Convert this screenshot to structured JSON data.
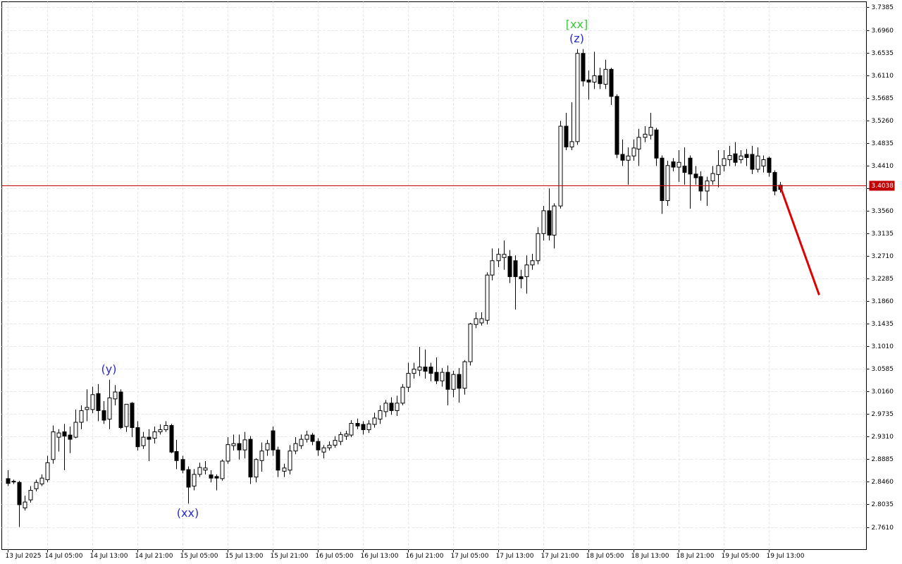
{
  "chart_data": {
    "type": "candlestick",
    "xlim": [
      -1,
      152.375
    ],
    "ylim": [
      2.7186,
      3.7491
    ],
    "grid": true,
    "up_color": "#ffffff",
    "down_color": "#000000",
    "outline_color": "#000000",
    "xticks": [
      {
        "value": 0,
        "label": "13 Jul 2025"
      },
      {
        "value": 7,
        "label": "14 Jul 05:00"
      },
      {
        "value": 15,
        "label": "14 Jul 13:00"
      },
      {
        "value": 23,
        "label": "14 Jul 21:00"
      },
      {
        "value": 31,
        "label": "15 Jul 05:00"
      },
      {
        "value": 39,
        "label": "15 Jul 13:00"
      },
      {
        "value": 47,
        "label": "15 Jul 21:00"
      },
      {
        "value": 55,
        "label": "16 Jul 05:00"
      },
      {
        "value": 63,
        "label": "16 Jul 13:00"
      },
      {
        "value": 71,
        "label": "16 Jul 21:00"
      },
      {
        "value": 79,
        "label": "17 Jul 05:00"
      },
      {
        "value": 87,
        "label": "17 Jul 13:00"
      },
      {
        "value": 95,
        "label": "17 Jul 21:00"
      },
      {
        "value": 103,
        "label": "18 Jul 05:00"
      },
      {
        "value": 111,
        "label": "18 Jul 13:00"
      },
      {
        "value": 119,
        "label": "18 Jul 21:00"
      },
      {
        "value": 127,
        "label": "19 Jul 05:00"
      },
      {
        "value": 135,
        "label": "19 Jul 13:00"
      }
    ],
    "yticks": [
      3.7385,
      {
        "value": 3.696,
        "label": "3.6960"
      },
      3.6535,
      {
        "value": 3.611,
        "label": "3.6110"
      },
      3.5685,
      {
        "value": 3.526,
        "label": "3.5260"
      },
      3.4835,
      {
        "value": 3.441,
        "label": "3.4410"
      },
      3.3985,
      {
        "value": 3.356,
        "label": "3.3560"
      },
      3.3135,
      {
        "value": 3.271,
        "label": "3.2710"
      },
      3.2285,
      {
        "value": 3.186,
        "label": "3.1860"
      },
      3.1435,
      {
        "value": 3.101,
        "label": "3.1010"
      },
      3.0585,
      {
        "value": 3.016,
        "label": "3.0160"
      },
      2.9735,
      {
        "value": 2.931,
        "label": "2.9310"
      },
      2.8885,
      {
        "value": 2.846,
        "label": "2.8460"
      },
      2.8035,
      {
        "value": 2.761,
        "label": "2.7610"
      }
    ],
    "open": [
      2.852,
      2.846,
      2.845,
      2.797,
      2.812,
      2.833,
      2.842,
      2.85,
      2.888,
      2.93,
      2.94,
      2.934,
      2.93,
      2.958,
      2.982,
      2.982,
      3.012,
      2.98,
      2.964,
      3.002,
      3.015,
      2.95,
      2.994,
      2.948,
      2.914,
      2.93,
      2.928,
      2.94,
      2.944,
      2.952,
      2.903,
      2.888,
      2.869,
      2.838,
      2.86,
      2.868,
      2.859,
      2.856,
      2.852,
      2.885,
      2.914,
      2.918,
      2.906,
      2.926,
      2.855,
      2.886,
      2.906,
      2.942,
      2.906,
      2.866,
      2.868,
      2.904,
      2.914,
      2.926,
      2.934,
      2.922,
      2.902,
      2.91,
      2.915,
      2.922,
      2.932,
      2.934,
      2.956,
      2.954,
      2.944,
      2.954,
      2.964,
      2.978,
      2.994,
      2.98,
      2.994,
      3.024,
      3.05,
      3.056,
      3.062,
      3.062,
      3.052,
      3.036,
      3.052,
      3.02,
      3.048,
      3.022,
      3.072,
      3.142,
      3.145,
      3.15,
      3.235,
      3.262,
      3.268,
      3.27,
      3.262,
      3.232,
      3.232,
      3.254,
      3.262,
      3.313,
      3.356,
      3.31,
      3.365,
      3.515,
      3.476,
      3.486,
      3.652,
      3.602,
      3.598,
      3.61,
      3.594,
      3.622,
      3.571,
      3.462,
      3.451,
      3.459,
      3.472,
      3.494,
      3.498,
      3.508,
      3.455,
      3.375,
      3.448,
      3.438,
      3.44,
      3.455,
      3.425,
      3.42,
      3.393,
      3.412,
      3.424,
      3.441,
      3.452,
      3.463,
      3.452,
      3.462,
      3.462,
      3.434,
      3.44,
      3.455,
      3.428,
      3.404
    ],
    "high": [
      2.868,
      2.85,
      2.848,
      2.82,
      2.838,
      2.85,
      2.86,
      2.895,
      2.952,
      2.945,
      2.955,
      2.95,
      2.982,
      2.99,
      3.02,
      3.025,
      3.03,
      2.998,
      3.038,
      3.028,
      3.02,
      2.992,
      2.996,
      2.96,
      2.94,
      2.945,
      2.95,
      2.954,
      2.96,
      2.955,
      2.925,
      2.895,
      2.875,
      2.87,
      2.882,
      2.885,
      2.868,
      2.86,
      2.888,
      2.93,
      2.935,
      2.935,
      2.94,
      2.932,
      2.89,
      2.92,
      2.925,
      2.95,
      2.912,
      2.88,
      2.915,
      2.93,
      2.935,
      2.942,
      2.938,
      2.928,
      2.915,
      2.922,
      2.932,
      2.94,
      2.942,
      2.962,
      2.965,
      2.96,
      2.962,
      2.976,
      2.99,
      3.0,
      3.005,
      3.008,
      3.03,
      3.07,
      3.07,
      3.1,
      3.095,
      3.07,
      3.08,
      3.06,
      3.065,
      3.055,
      3.06,
      3.075,
      3.145,
      3.165,
      3.165,
      3.24,
      3.285,
      3.285,
      3.3,
      3.282,
      3.272,
      3.245,
      3.272,
      3.275,
      3.325,
      3.365,
      3.398,
      3.37,
      3.525,
      3.54,
      3.56,
      3.66,
      3.66,
      3.62,
      3.655,
      3.625,
      3.64,
      3.625,
      3.575,
      3.49,
      3.475,
      3.49,
      3.51,
      3.515,
      3.54,
      3.512,
      3.46,
      3.45,
      3.455,
      3.47,
      3.475,
      3.46,
      3.44,
      3.43,
      3.42,
      3.44,
      3.47,
      3.47,
      3.478,
      3.485,
      3.47,
      3.472,
      3.478,
      3.475,
      3.46,
      3.458,
      3.432,
      3.41
    ],
    "low": [
      2.838,
      2.842,
      2.761,
      2.792,
      2.807,
      2.828,
      2.838,
      2.845,
      2.88,
      2.903,
      2.868,
      2.9,
      2.928,
      2.945,
      2.96,
      2.975,
      2.96,
      2.955,
      2.945,
      2.99,
      2.945,
      2.94,
      2.93,
      2.905,
      2.908,
      2.885,
      2.918,
      2.935,
      2.94,
      2.9,
      2.87,
      2.862,
      2.805,
      2.83,
      2.855,
      2.86,
      2.845,
      2.83,
      2.848,
      2.88,
      2.905,
      2.888,
      2.89,
      2.842,
      2.845,
      2.865,
      2.895,
      2.895,
      2.855,
      2.855,
      2.86,
      2.898,
      2.908,
      2.92,
      2.915,
      2.895,
      2.89,
      2.905,
      2.91,
      2.915,
      2.925,
      2.93,
      2.945,
      2.935,
      2.938,
      2.948,
      2.955,
      2.968,
      2.972,
      2.97,
      2.99,
      3.015,
      3.04,
      3.045,
      3.04,
      3.035,
      3.03,
      3.025,
      2.99,
      3.005,
      2.995,
      3.01,
      3.065,
      3.135,
      3.14,
      3.142,
      3.225,
      3.25,
      3.245,
      3.22,
      3.17,
      3.21,
      3.2,
      3.245,
      3.255,
      3.3,
      3.3,
      3.285,
      3.36,
      3.47,
      3.47,
      3.48,
      3.59,
      3.565,
      3.585,
      3.585,
      3.585,
      3.555,
      3.455,
      3.44,
      3.405,
      3.45,
      3.44,
      3.485,
      3.49,
      3.44,
      3.35,
      3.365,
      3.43,
      3.41,
      3.405,
      3.36,
      3.405,
      3.375,
      3.365,
      3.405,
      3.4,
      3.43,
      3.44,
      3.44,
      3.445,
      3.44,
      3.425,
      3.428,
      3.428,
      3.42,
      3.385,
      3.39
    ],
    "close": [
      2.843,
      2.847,
      2.803,
      2.808,
      2.83,
      2.845,
      2.853,
      2.882,
      2.94,
      2.938,
      2.932,
      2.926,
      2.958,
      2.98,
      2.986,
      3.01,
      2.98,
      2.962,
      3.004,
      3.015,
      2.948,
      2.992,
      2.948,
      2.912,
      2.93,
      2.926,
      2.94,
      2.944,
      2.952,
      2.902,
      2.886,
      2.868,
      2.836,
      2.86,
      2.873,
      2.872,
      2.853,
      2.853,
      2.885,
      2.916,
      2.918,
      2.906,
      2.925,
      2.855,
      2.888,
      2.904,
      2.918,
      2.906,
      2.868,
      2.872,
      2.904,
      2.918,
      2.926,
      2.934,
      2.922,
      2.906,
      2.91,
      2.915,
      2.924,
      2.935,
      2.936,
      2.956,
      2.951,
      2.944,
      2.955,
      2.966,
      2.98,
      2.994,
      2.98,
      2.994,
      3.024,
      3.05,
      3.058,
      3.062,
      3.054,
      3.05,
      3.036,
      3.052,
      3.02,
      3.048,
      3.022,
      3.072,
      3.143,
      3.153,
      3.153,
      3.235,
      3.262,
      3.274,
      3.274,
      3.232,
      3.232,
      3.228,
      3.254,
      3.262,
      3.313,
      3.356,
      3.31,
      3.365,
      3.515,
      3.476,
      3.486,
      3.652,
      3.6,
      3.598,
      3.61,
      3.595,
      3.622,
      3.571,
      3.462,
      3.451,
      3.459,
      3.474,
      3.494,
      3.5,
      3.513,
      3.455,
      3.375,
      3.441,
      3.438,
      3.447,
      3.428,
      3.425,
      3.418,
      3.393,
      3.412,
      3.426,
      3.441,
      3.454,
      3.46,
      3.447,
      3.459,
      3.456,
      3.434,
      3.459,
      3.452,
      3.428,
      3.393,
      3.396
    ],
    "price_line": {
      "value": 3.4038,
      "color": "#c00000"
    },
    "forecast": {
      "x": [
        137,
        144
      ],
      "y": [
        3.4043,
        3.1974
      ],
      "color": "#e00000"
    },
    "annotations": [
      {
        "text": "(y)",
        "candle": 18,
        "side": "above",
        "color": "#2a2ad0"
      },
      {
        "text": "(xx)",
        "candle": 32,
        "side": "below",
        "color": "#2a2ad0"
      },
      {
        "text": "(z)",
        "candle": 101,
        "side": "above",
        "color": "#2a2ad0"
      },
      {
        "text": "[xx]",
        "candle": 101,
        "side": "above",
        "color": "#3cc83c"
      }
    ]
  }
}
